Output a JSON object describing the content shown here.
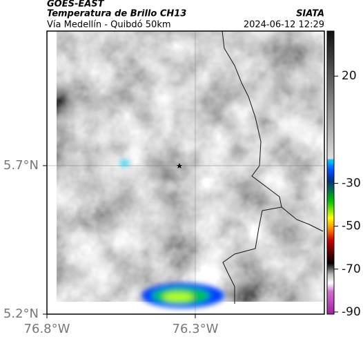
{
  "header": {
    "title": "GOES-EAST",
    "subtitle": "Temperatura de Brillo CH13",
    "region": "Vía Medellín - Quibdó 50km",
    "source": "SIATA",
    "datetime": "2024-06-12 12:29"
  },
  "map": {
    "xlim": [
      -76.8,
      -75.865
    ],
    "ylim": [
      5.2,
      6.153
    ],
    "xticks": [
      {
        "value": -76.8,
        "label": "76.8°W"
      },
      {
        "value": -76.3,
        "label": "76.3°W"
      }
    ],
    "yticks": [
      {
        "value": 5.2,
        "label": "5.2°N"
      },
      {
        "value": 5.7,
        "label": "5.7°N"
      }
    ],
    "grid": true
  },
  "colorbar": {
    "lim": [
      -91,
      41
    ],
    "ticks": [
      20,
      -30,
      -50,
      -70,
      -90
    ]
  }
}
